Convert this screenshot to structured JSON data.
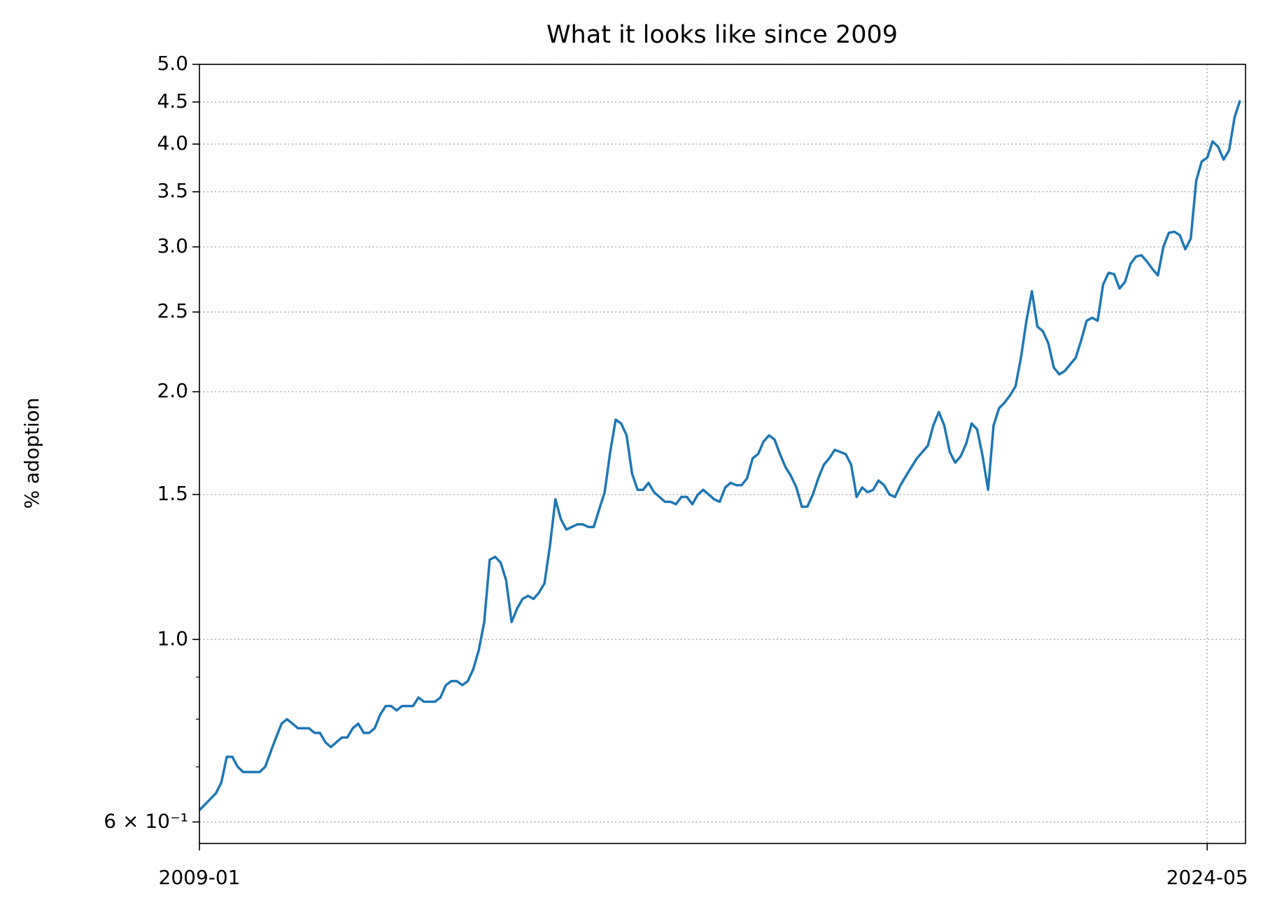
{
  "chart_data": {
    "type": "line",
    "title": "What it looks like since 2009",
    "y_label": "% adoption",
    "log_y": true,
    "grid": true,
    "xlim": [
      "2009-01",
      "2024-12"
    ],
    "xticks": [
      "2009-01",
      "2024-05"
    ],
    "ylim": [
      0.565,
      5.0
    ],
    "yticks": [
      {
        "value": 0.6,
        "label": "6 × 10⁻¹"
      },
      {
        "value": 1,
        "label": "1.0"
      },
      1.5,
      {
        "value": 2,
        "label": "2.0"
      },
      2.5,
      {
        "value": 3,
        "label": "3.0"
      },
      3.5,
      {
        "value": 4,
        "label": "4.0"
      },
      4.5,
      {
        "value": 5,
        "label": "5.0"
      }
    ],
    "yminorticks": [
      0.7,
      0.8,
      0.9
    ],
    "x": [
      "2009-01",
      "2009-02",
      "2009-03",
      "2009-04",
      "2009-05",
      "2009-06",
      "2009-07",
      "2009-08",
      "2009-09",
      "2009-10",
      "2009-11",
      "2009-12",
      "2010-01",
      "2010-02",
      "2010-03",
      "2010-04",
      "2010-05",
      "2010-06",
      "2010-07",
      "2010-08",
      "2010-09",
      "2010-10",
      "2010-11",
      "2010-12",
      "2011-01",
      "2011-02",
      "2011-03",
      "2011-04",
      "2011-05",
      "2011-06",
      "2011-07",
      "2011-08",
      "2011-09",
      "2011-10",
      "2011-11",
      "2011-12",
      "2012-01",
      "2012-02",
      "2012-03",
      "2012-04",
      "2012-05",
      "2012-06",
      "2012-07",
      "2012-08",
      "2012-09",
      "2012-10",
      "2012-11",
      "2012-12",
      "2013-01",
      "2013-02",
      "2013-03",
      "2013-04",
      "2013-05",
      "2013-06",
      "2013-07",
      "2013-08",
      "2013-09",
      "2013-10",
      "2013-11",
      "2013-12",
      "2014-01",
      "2014-02",
      "2014-03",
      "2014-04",
      "2014-05",
      "2014-06",
      "2014-07",
      "2014-08",
      "2014-09",
      "2014-10",
      "2014-11",
      "2014-12",
      "2015-01",
      "2015-02",
      "2015-03",
      "2015-04",
      "2015-05",
      "2015-06",
      "2015-07",
      "2015-08",
      "2015-09",
      "2015-10",
      "2015-11",
      "2015-12",
      "2016-01",
      "2016-02",
      "2016-03",
      "2016-04",
      "2016-05",
      "2016-06",
      "2016-07",
      "2016-08",
      "2016-09",
      "2016-10",
      "2016-11",
      "2016-12",
      "2017-01",
      "2017-02",
      "2017-03",
      "2017-04",
      "2017-05",
      "2017-06",
      "2017-07",
      "2017-08",
      "2017-09",
      "2017-10",
      "2017-11",
      "2017-12",
      "2018-01",
      "2018-02",
      "2018-03",
      "2018-04",
      "2018-05",
      "2018-06",
      "2018-07",
      "2018-08",
      "2018-09",
      "2018-10",
      "2018-11",
      "2018-12",
      "2019-01",
      "2019-02",
      "2019-03",
      "2019-04",
      "2019-05",
      "2019-06",
      "2019-07",
      "2019-08",
      "2019-09",
      "2019-10",
      "2019-11",
      "2019-12",
      "2020-01",
      "2020-02",
      "2020-03",
      "2020-04",
      "2020-05",
      "2020-06",
      "2020-07",
      "2020-08",
      "2020-09",
      "2020-10",
      "2020-11",
      "2020-12",
      "2021-01",
      "2021-02",
      "2021-03",
      "2021-04",
      "2021-05",
      "2021-06",
      "2021-07",
      "2021-08",
      "2021-09",
      "2021-10",
      "2021-11",
      "2021-12",
      "2022-01",
      "2022-02",
      "2022-03",
      "2022-04",
      "2022-05",
      "2022-06",
      "2022-07",
      "2022-08",
      "2022-09",
      "2022-10",
      "2022-11",
      "2022-12",
      "2023-01",
      "2023-02",
      "2023-03",
      "2023-04",
      "2023-05",
      "2023-06",
      "2023-07",
      "2023-08",
      "2023-09",
      "2023-10",
      "2023-11",
      "2023-12",
      "2024-01",
      "2024-02",
      "2024-03",
      "2024-04",
      "2024-05",
      "2024-06",
      "2024-07",
      "2024-08",
      "2024-09",
      "2024-10",
      "2024-11"
    ],
    "series": [
      {
        "color": "#1f77b4",
        "values": [
          0.62,
          0.63,
          0.64,
          0.65,
          0.67,
          0.72,
          0.72,
          0.7,
          0.69,
          0.69,
          0.69,
          0.69,
          0.7,
          0.73,
          0.76,
          0.79,
          0.8,
          0.79,
          0.78,
          0.78,
          0.78,
          0.77,
          0.77,
          0.75,
          0.74,
          0.75,
          0.76,
          0.76,
          0.78,
          0.79,
          0.77,
          0.77,
          0.78,
          0.81,
          0.83,
          0.83,
          0.82,
          0.83,
          0.83,
          0.83,
          0.85,
          0.84,
          0.84,
          0.84,
          0.85,
          0.88,
          0.89,
          0.89,
          0.88,
          0.89,
          0.92,
          0.97,
          1.05,
          1.25,
          1.26,
          1.24,
          1.18,
          1.05,
          1.09,
          1.12,
          1.13,
          1.12,
          1.14,
          1.17,
          1.3,
          1.48,
          1.4,
          1.36,
          1.37,
          1.38,
          1.38,
          1.37,
          1.37,
          1.44,
          1.51,
          1.69,
          1.85,
          1.83,
          1.77,
          1.59,
          1.52,
          1.52,
          1.55,
          1.51,
          1.49,
          1.47,
          1.47,
          1.46,
          1.49,
          1.49,
          1.46,
          1.5,
          1.52,
          1.5,
          1.48,
          1.47,
          1.53,
          1.55,
          1.54,
          1.54,
          1.57,
          1.66,
          1.68,
          1.74,
          1.77,
          1.75,
          1.68,
          1.62,
          1.58,
          1.53,
          1.45,
          1.45,
          1.5,
          1.57,
          1.63,
          1.66,
          1.7,
          1.69,
          1.68,
          1.63,
          1.49,
          1.53,
          1.51,
          1.52,
          1.56,
          1.54,
          1.5,
          1.49,
          1.54,
          1.58,
          1.62,
          1.66,
          1.69,
          1.72,
          1.82,
          1.89,
          1.82,
          1.69,
          1.64,
          1.67,
          1.73,
          1.83,
          1.8,
          1.67,
          1.52,
          1.82,
          1.91,
          1.94,
          1.98,
          2.03,
          2.2,
          2.44,
          2.65,
          2.4,
          2.37,
          2.29,
          2.14,
          2.1,
          2.12,
          2.16,
          2.2,
          2.31,
          2.44,
          2.46,
          2.44,
          2.7,
          2.79,
          2.78,
          2.67,
          2.72,
          2.86,
          2.92,
          2.93,
          2.88,
          2.82,
          2.77,
          3.0,
          3.12,
          3.13,
          3.1,
          2.98,
          3.07,
          3.61,
          3.81,
          3.85,
          4.03,
          3.97,
          3.83,
          3.93,
          4.31,
          4.52
        ]
      }
    ]
  }
}
